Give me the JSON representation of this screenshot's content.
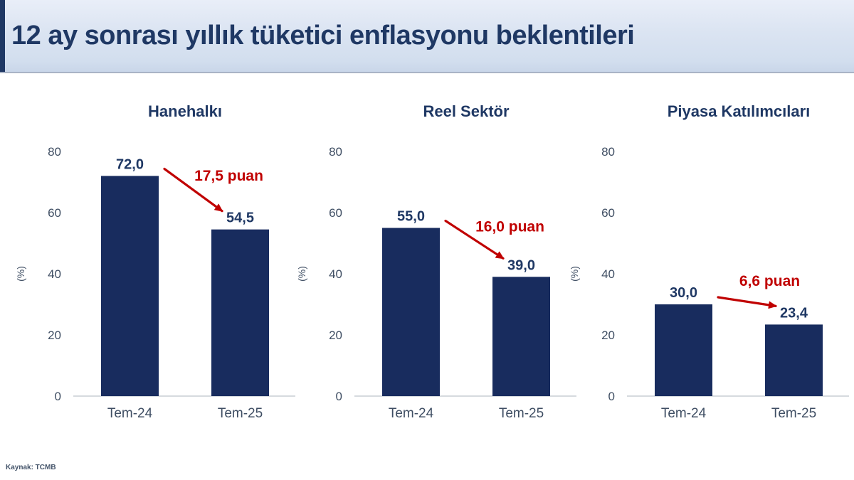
{
  "header": {
    "title": "12 ay sonrası yıllık tüketici enflasyonu beklentileri"
  },
  "footer": {
    "source": "Kaynak: TCMB"
  },
  "colors": {
    "bar_navy": "#182c5e",
    "text_navy": "#1f3864",
    "red": "#c00000",
    "tick_gray": "#3f4e63",
    "axis_line": "#c8cdd3",
    "header_bg": "#dbe4f2",
    "accent_navy": "#1f3864"
  },
  "chart_data": [
    {
      "type": "bar",
      "title": "Hanehalkı",
      "ylabel": "(%)",
      "ylim": [
        0,
        80
      ],
      "yticks": [
        0,
        20,
        40,
        60,
        80
      ],
      "grid": false,
      "categories": [
        "Tem-24",
        "Tem-25"
      ],
      "values": [
        72.0,
        54.5
      ],
      "value_labels": [
        "72,0",
        "54,5"
      ],
      "change_label": "17,5 puan"
    },
    {
      "type": "bar",
      "title": "Reel Sektör",
      "ylabel": "(%)",
      "ylim": [
        0,
        80
      ],
      "yticks": [
        0,
        20,
        40,
        60,
        80
      ],
      "grid": false,
      "categories": [
        "Tem-24",
        "Tem-25"
      ],
      "values": [
        55.0,
        39.0
      ],
      "value_labels": [
        "55,0",
        "39,0"
      ],
      "change_label": "16,0 puan"
    },
    {
      "type": "bar",
      "title": "Piyasa Katılımcıları",
      "ylabel": "(%)",
      "ylim": [
        0,
        80
      ],
      "yticks": [
        0,
        20,
        40,
        60,
        80
      ],
      "grid": false,
      "categories": [
        "Tem-24",
        "Tem-25"
      ],
      "values": [
        30.0,
        23.4
      ],
      "value_labels": [
        "30,0",
        "23,4"
      ],
      "change_label": "6,6 puan"
    }
  ]
}
